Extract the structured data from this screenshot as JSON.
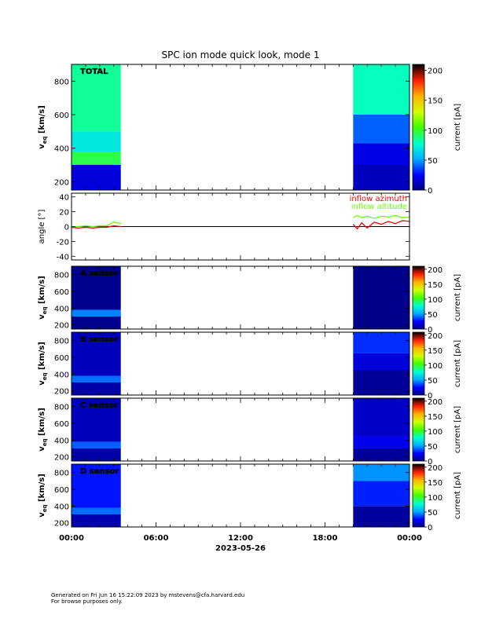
{
  "chart_data": {
    "type": "heatmap",
    "title": "SPC ion mode quick look, mode 1",
    "date": "2023-05-26",
    "x_ticks": [
      "00:00",
      "06:00",
      "12:00",
      "18:00",
      "00:00"
    ],
    "x_range_hours": [
      0,
      24
    ],
    "data_coverage_hours": [
      [
        0,
        3.5
      ],
      [
        20,
        24
      ]
    ],
    "panels": [
      {
        "kind": "spectrogram",
        "label": "TOTAL",
        "ylabel": "v",
        "ylabel_sub": "eq",
        "ylabel_unit": "[km/s]",
        "ylim": [
          150,
          900
        ],
        "yticks": [
          200,
          400,
          600,
          800
        ],
        "cbar_label": "current [pA]",
        "cbar_range": [
          0,
          210
        ],
        "cbar_ticks": [
          0,
          50,
          100,
          150,
          200
        ],
        "bands_early": [
          [
            150,
            300,
            18
          ],
          [
            300,
            380,
            95
          ],
          [
            380,
            500,
            70
          ],
          [
            500,
            900,
            85
          ]
        ],
        "bands_late": [
          [
            150,
            300,
            12
          ],
          [
            300,
            430,
            20
          ],
          [
            430,
            600,
            40
          ],
          [
            600,
            900,
            80
          ]
        ]
      },
      {
        "kind": "angle",
        "ylabel": "angle [°]",
        "ylim": [
          -45,
          45
        ],
        "yticks": [
          -40,
          -20,
          0,
          20,
          40
        ],
        "legend": [
          {
            "name": "inflow azimuth",
            "color": "#ff0000"
          },
          {
            "name": "inflow altitude",
            "color": "#66ff00"
          }
        ],
        "series": [
          {
            "name": "inflow azimuth",
            "color": "#ff0000",
            "x": [
              0,
              0.5,
              1,
              1.5,
              2,
              2.5,
              3,
              3.5,
              20,
              20.3,
              20.6,
              21,
              21.5,
              22,
              22.5,
              23,
              23.5,
              24
            ],
            "y": [
              -1,
              -2,
              -1,
              -2,
              -1,
              -1,
              1,
              0,
              3,
              -3,
              5,
              -2,
              6,
              3,
              7,
              4,
              8,
              7
            ]
          },
          {
            "name": "inflow altitude",
            "color": "#66ff00",
            "x": [
              0,
              0.5,
              1,
              1.5,
              2,
              2.5,
              3,
              3.5,
              20,
              20.3,
              20.6,
              21,
              21.5,
              22,
              22.5,
              23,
              23.5,
              24
            ],
            "y": [
              0,
              0,
              1,
              0,
              1,
              1,
              6,
              4,
              12,
              15,
              12,
              14,
              11,
              14,
              13,
              15,
              12,
              13
            ]
          }
        ]
      },
      {
        "kind": "spectrogram",
        "label": "A sensor",
        "ylabel": "v",
        "ylabel_sub": "eq",
        "ylabel_unit": "[km/s]",
        "ylim": [
          150,
          900
        ],
        "yticks": [
          200,
          400,
          600,
          800
        ],
        "cbar_label": "current [pA]",
        "cbar_range": [
          0,
          210
        ],
        "cbar_ticks": [
          0,
          50,
          100,
          150,
          200
        ],
        "bands_early": [
          [
            150,
            300,
            3
          ],
          [
            300,
            380,
            45
          ],
          [
            380,
            900,
            3
          ]
        ],
        "bands_late": [
          [
            150,
            900,
            2
          ]
        ]
      },
      {
        "kind": "spectrogram",
        "label": "B sensor",
        "ylabel": "v",
        "ylabel_sub": "eq",
        "ylabel_unit": "[km/s]",
        "ylim": [
          150,
          900
        ],
        "yticks": [
          200,
          400,
          600,
          800
        ],
        "cbar_label": "current [pA]",
        "cbar_range": [
          0,
          210
        ],
        "cbar_ticks": [
          0,
          50,
          100,
          150,
          200
        ],
        "bands_early": [
          [
            150,
            300,
            8
          ],
          [
            300,
            380,
            42
          ],
          [
            380,
            900,
            12
          ]
        ],
        "bands_late": [
          [
            150,
            450,
            5
          ],
          [
            450,
            650,
            18
          ],
          [
            650,
            900,
            32
          ]
        ]
      },
      {
        "kind": "spectrogram",
        "label": "C sensor",
        "ylabel": "v",
        "ylabel_sub": "eq",
        "ylabel_unit": "[km/s]",
        "ylim": [
          150,
          900
        ],
        "yticks": [
          200,
          400,
          600,
          800
        ],
        "cbar_label": "current [pA]",
        "cbar_range": [
          0,
          210
        ],
        "cbar_ticks": [
          0,
          50,
          100,
          150,
          200
        ],
        "bands_early": [
          [
            150,
            300,
            8
          ],
          [
            300,
            380,
            40
          ],
          [
            380,
            900,
            12
          ]
        ],
        "bands_late": [
          [
            150,
            300,
            5
          ],
          [
            300,
            450,
            22
          ],
          [
            450,
            900,
            14
          ]
        ]
      },
      {
        "kind": "spectrogram",
        "label": "D sensor",
        "ylabel": "v",
        "ylabel_sub": "eq",
        "ylabel_unit": "[km/s]",
        "ylim": [
          150,
          900
        ],
        "yticks": [
          200,
          400,
          600,
          800
        ],
        "cbar_label": "current [pA]",
        "cbar_range": [
          0,
          210
        ],
        "cbar_ticks": [
          0,
          50,
          100,
          150,
          200
        ],
        "bands_early": [
          [
            150,
            300,
            10
          ],
          [
            300,
            380,
            42
          ],
          [
            380,
            900,
            28
          ]
        ],
        "bands_late": [
          [
            150,
            400,
            6
          ],
          [
            400,
            700,
            30
          ],
          [
            700,
            900,
            48
          ]
        ]
      }
    ]
  },
  "footer": {
    "line1": "Generated on Fri Jun 16 15:22:09 2023 by mstevens@cfa.harvard.edu",
    "line2": "For browse purposes only."
  }
}
